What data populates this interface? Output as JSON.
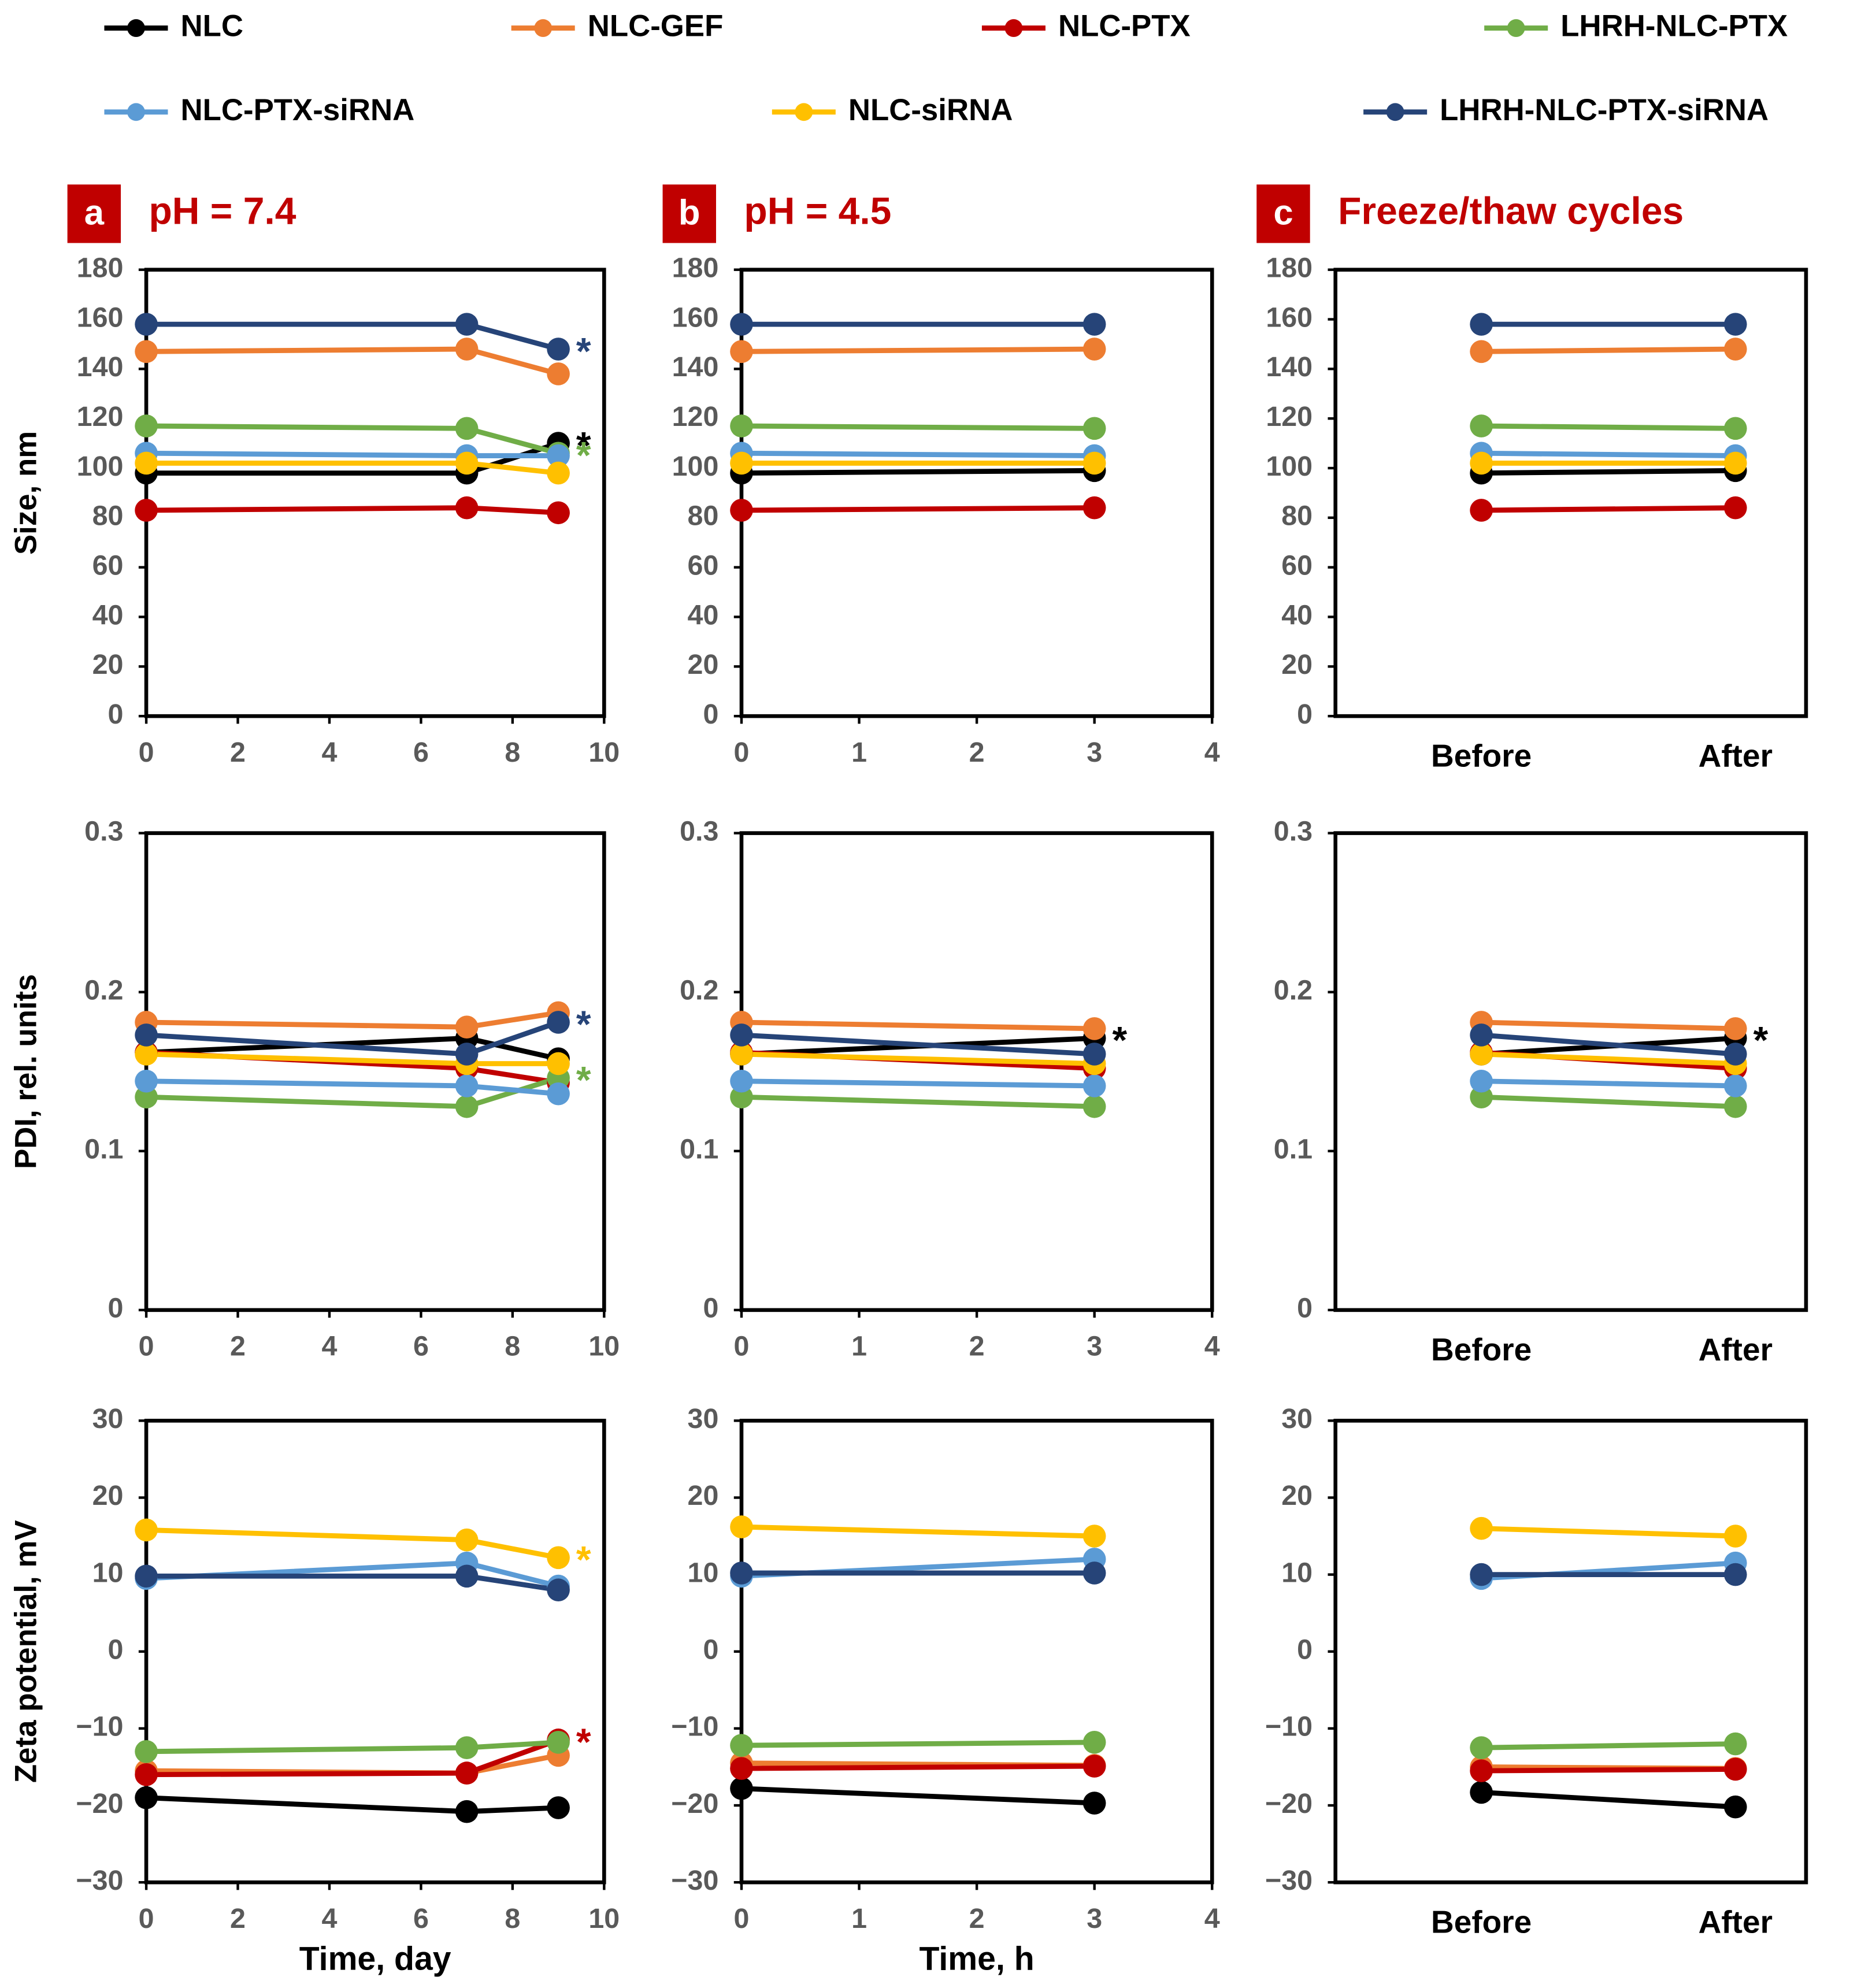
{
  "legend": [
    {
      "name": "NLC",
      "color": "#000000"
    },
    {
      "name": "NLC-GEF",
      "color": "#ED7D31"
    },
    {
      "name": "NLC-PTX",
      "color": "#C00000"
    },
    {
      "name": "LHRH-NLC-PTX",
      "color": "#70AD47"
    },
    {
      "name": "NLC-PTX-siRNA",
      "color": "#5B9BD5"
    },
    {
      "name": "NLC-siRNA",
      "color": "#FFC000"
    },
    {
      "name": "LHRH-NLC-PTX-siRNA",
      "color": "#264478"
    }
  ],
  "chart_data": [
    {
      "type": "line",
      "panel": "a",
      "title": "pH = 7.4",
      "y_label": "Size, nm",
      "x": [
        0,
        7,
        9
      ],
      "xlim": [
        0,
        10
      ],
      "xticks": [
        0,
        2,
        4,
        6,
        8,
        10
      ],
      "ylim": [
        0,
        180
      ],
      "yticks": [
        0,
        20,
        40,
        60,
        80,
        100,
        120,
        140,
        160,
        180
      ],
      "series": [
        {
          "values": [
            98,
            98,
            110
          ]
        },
        {
          "values": [
            147,
            148,
            138
          ]
        },
        {
          "values": [
            83,
            84,
            82
          ]
        },
        {
          "values": [
            117,
            116,
            106
          ]
        },
        {
          "values": [
            106,
            105,
            105
          ]
        },
        {
          "values": [
            102,
            102,
            98
          ]
        },
        {
          "values": [
            158,
            158,
            148
          ]
        }
      ],
      "annotations": [
        {
          "text": "*",
          "color": "#264478"
        },
        {
          "text": "*",
          "color": "#000000"
        },
        {
          "text": "*",
          "color": "#70AD47"
        }
      ]
    },
    {
      "type": "line",
      "panel": "b",
      "title": "pH = 4.5",
      "x": [
        0,
        3
      ],
      "xlim": [
        0,
        4
      ],
      "xticks": [
        0,
        1,
        2,
        3,
        4
      ],
      "ylim": [
        0,
        180
      ],
      "yticks": [
        0,
        20,
        40,
        60,
        80,
        100,
        120,
        140,
        160,
        180
      ],
      "series": [
        {
          "values": [
            98,
            99
          ]
        },
        {
          "values": [
            147,
            148
          ]
        },
        {
          "values": [
            83,
            84
          ]
        },
        {
          "values": [
            117,
            116
          ]
        },
        {
          "values": [
            106,
            105
          ]
        },
        {
          "values": [
            102,
            102
          ]
        },
        {
          "values": [
            158,
            158
          ]
        }
      ]
    },
    {
      "type": "line",
      "panel": "c",
      "title": "Freeze/thaw cycles",
      "categories": [
        "Before",
        "After"
      ],
      "ylim": [
        0,
        180
      ],
      "yticks": [
        0,
        20,
        40,
        60,
        80,
        100,
        120,
        140,
        160,
        180
      ],
      "series": [
        {
          "values": [
            98,
            99
          ]
        },
        {
          "values": [
            147,
            148
          ]
        },
        {
          "values": [
            83,
            84
          ]
        },
        {
          "values": [
            117,
            116
          ]
        },
        {
          "values": [
            106,
            105
          ]
        },
        {
          "values": [
            102,
            102
          ]
        },
        {
          "values": [
            158,
            158
          ]
        }
      ]
    },
    {
      "type": "line",
      "y_label": "PDI, rel. units",
      "x": [
        0,
        7,
        9
      ],
      "xlim": [
        0,
        10
      ],
      "xticks": [
        0,
        2,
        4,
        6,
        8,
        10
      ],
      "ylim": [
        0,
        0.3
      ],
      "yticks": [
        0,
        0.1,
        0.2,
        0.3
      ],
      "series": [
        {
          "values": [
            0.162,
            0.171,
            0.158
          ]
        },
        {
          "values": [
            0.181,
            0.178,
            0.187
          ]
        },
        {
          "values": [
            0.162,
            0.152,
            0.143
          ]
        },
        {
          "values": [
            0.134,
            0.128,
            0.146
          ]
        },
        {
          "values": [
            0.144,
            0.141,
            0.136
          ]
        },
        {
          "values": [
            0.161,
            0.155,
            0.155
          ]
        },
        {
          "values": [
            0.173,
            0.161,
            0.181
          ]
        }
      ],
      "annotations": [
        {
          "text": "*",
          "color": "#264478"
        },
        {
          "text": "*",
          "color": "#70AD47"
        }
      ]
    },
    {
      "type": "line",
      "x": [
        0,
        3
      ],
      "xlim": [
        0,
        4
      ],
      "xticks": [
        0,
        1,
        2,
        3,
        4
      ],
      "ylim": [
        0,
        0.3
      ],
      "yticks": [
        0,
        0.1,
        0.2,
        0.3
      ],
      "series": [
        {
          "values": [
            0.161,
            0.171
          ]
        },
        {
          "values": [
            0.181,
            0.177
          ]
        },
        {
          "values": [
            0.162,
            0.152
          ]
        },
        {
          "values": [
            0.134,
            0.128
          ]
        },
        {
          "values": [
            0.144,
            0.141
          ]
        },
        {
          "values": [
            0.161,
            0.155
          ]
        },
        {
          "values": [
            0.173,
            0.161
          ]
        }
      ],
      "annotations": [
        {
          "text": "*",
          "color": "#000000"
        }
      ]
    },
    {
      "type": "line",
      "categories": [
        "Before",
        "After"
      ],
      "ylim": [
        0,
        0.3
      ],
      "yticks": [
        0,
        0.1,
        0.2,
        0.3
      ],
      "series": [
        {
          "values": [
            0.161,
            0.171
          ]
        },
        {
          "values": [
            0.181,
            0.177
          ]
        },
        {
          "values": [
            0.162,
            0.152
          ]
        },
        {
          "values": [
            0.134,
            0.128
          ]
        },
        {
          "values": [
            0.144,
            0.141
          ]
        },
        {
          "values": [
            0.161,
            0.155
          ]
        },
        {
          "values": [
            0.173,
            0.161
          ]
        }
      ],
      "annotations": [
        {
          "text": "*",
          "color": "#000000"
        }
      ]
    },
    {
      "type": "line",
      "y_label": "Zeta potential, mV",
      "x_label": "Time, day",
      "x": [
        0,
        7,
        9
      ],
      "xlim": [
        0,
        10
      ],
      "xticks": [
        0,
        2,
        4,
        6,
        8,
        10
      ],
      "ylim": [
        -30,
        30
      ],
      "yticks": [
        {
          "value": -30,
          "label": "−30"
        },
        {
          "value": -20,
          "label": "−20"
        },
        {
          "value": -10,
          "label": "−10"
        },
        0,
        10,
        20,
        30
      ],
      "series": [
        {
          "values": [
            -19,
            -20.8,
            -20.3
          ]
        },
        {
          "values": [
            -15.5,
            -15.8,
            -13.5
          ]
        },
        {
          "values": [
            -16,
            -15.8,
            -11.5
          ]
        },
        {
          "values": [
            -13,
            -12.5,
            -11.8
          ]
        },
        {
          "values": [
            9.5,
            11.5,
            8.5
          ]
        },
        {
          "values": [
            15.8,
            14.5,
            12.2
          ]
        },
        {
          "values": [
            9.8,
            9.8,
            8
          ]
        }
      ],
      "annotations": [
        {
          "text": "*",
          "color": "#FFC000"
        },
        {
          "text": "*",
          "color": "#C00000"
        }
      ]
    },
    {
      "type": "line",
      "x_label": "Time, h",
      "x": [
        0,
        3
      ],
      "xlim": [
        0,
        4
      ],
      "xticks": [
        0,
        1,
        2,
        3,
        4
      ],
      "ylim": [
        -30,
        30
      ],
      "yticks": [
        {
          "value": -30,
          "label": "−30"
        },
        {
          "value": -20,
          "label": "−20"
        },
        {
          "value": -10,
          "label": "−10"
        },
        0,
        10,
        20,
        30
      ],
      "series": [
        {
          "values": [
            -17.8,
            -19.7
          ]
        },
        {
          "values": [
            -14.5,
            -14.8
          ]
        },
        {
          "values": [
            -15.2,
            -14.9
          ]
        },
        {
          "values": [
            -12.2,
            -11.8
          ]
        },
        {
          "values": [
            9.8,
            12
          ]
        },
        {
          "values": [
            16.2,
            15
          ]
        },
        {
          "values": [
            10.2,
            10.2
          ]
        }
      ]
    },
    {
      "type": "line",
      "categories": [
        "Before",
        "After"
      ],
      "ylim": [
        -30,
        30
      ],
      "yticks": [
        {
          "value": -30,
          "label": "−30"
        },
        {
          "value": -20,
          "label": "−20"
        },
        {
          "value": -10,
          "label": "−10"
        },
        0,
        10,
        20,
        30
      ],
      "series": [
        {
          "values": [
            -18.3,
            -20.2
          ]
        },
        {
          "values": [
            -15,
            -15.2
          ]
        },
        {
          "values": [
            -15.5,
            -15.3
          ]
        },
        {
          "values": [
            -12.5,
            -12
          ]
        },
        {
          "values": [
            9.5,
            11.5
          ]
        },
        {
          "values": [
            16,
            15
          ]
        },
        {
          "values": [
            10,
            10
          ]
        }
      ]
    }
  ]
}
